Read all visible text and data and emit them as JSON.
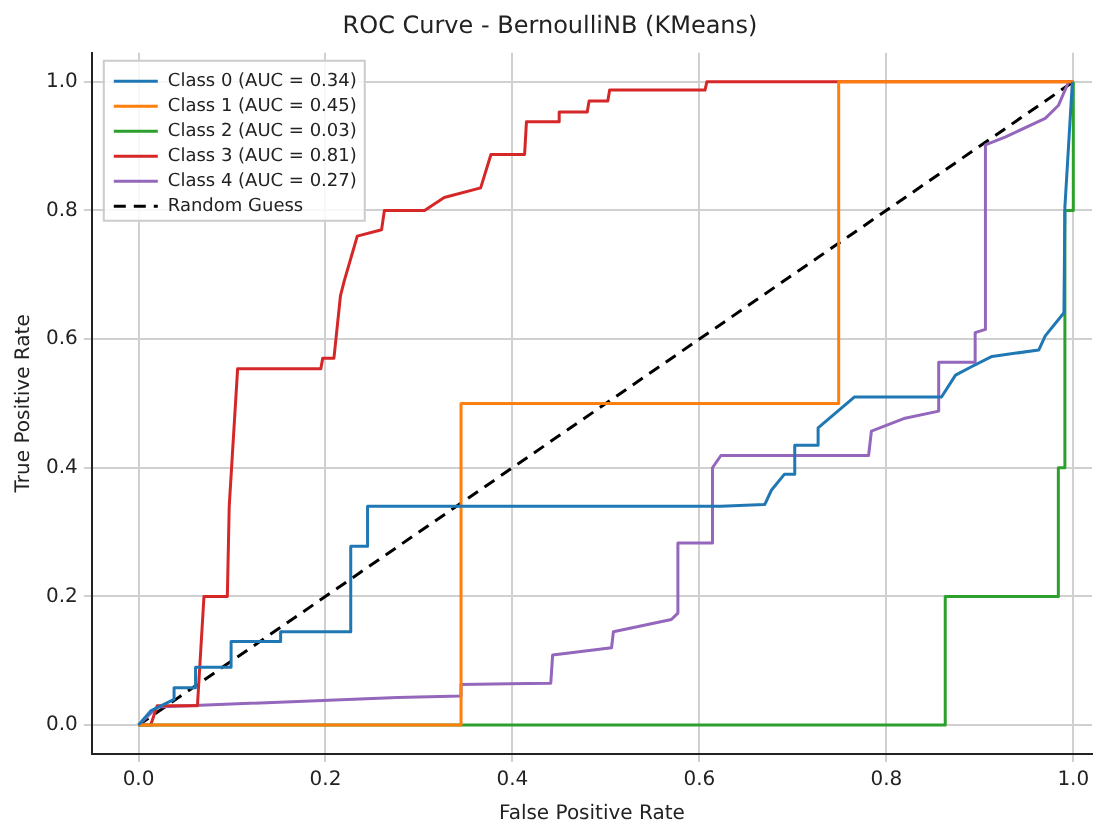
{
  "chart_data": {
    "type": "line",
    "title": "ROC Curve - BernoulliNB (KMeans)",
    "xlabel": "False Positive Rate",
    "ylabel": "True Positive Rate",
    "xlim": [
      -0.05,
      1.02
    ],
    "ylim": [
      -0.045,
      1.045
    ],
    "xticks": [
      {
        "value": 0,
        "label": "0.0"
      },
      {
        "value": 0.2,
        "label": "0.2"
      },
      {
        "value": 0.4,
        "label": "0.4"
      },
      {
        "value": 0.6,
        "label": "0.6"
      },
      {
        "value": 0.8,
        "label": "0.8"
      },
      {
        "value": 1,
        "label": "1.0"
      }
    ],
    "yticks": [
      {
        "value": 0,
        "label": "0.0"
      },
      {
        "value": 0.2,
        "label": "0.2"
      },
      {
        "value": 0.4,
        "label": "0.4"
      },
      {
        "value": 0.6,
        "label": "0.6"
      },
      {
        "value": 0.8,
        "label": "0.8"
      },
      {
        "value": 1,
        "label": "1.0"
      }
    ],
    "grid": true,
    "legend": "top left",
    "marker": "none",
    "line_style": "solid",
    "series": [
      {
        "name": "Class 0 (AUC = 0.34)",
        "color": "#1f77b4",
        "x": [
          0,
          0.013,
          0.038,
          0.038,
          0.061,
          0.061,
          0.099,
          0.099,
          0.152,
          0.152,
          0.227,
          0.227,
          0.245,
          0.245,
          0.623,
          0.67,
          0.677,
          0.691,
          0.702,
          0.702,
          0.727,
          0.727,
          0.766,
          0.859,
          0.874,
          0.891,
          0.913,
          0.963,
          0.97,
          0.99,
          0.991,
          0.999,
          1
        ],
        "values": [
          0,
          0.022,
          0.04,
          0.058,
          0.058,
          0.09,
          0.09,
          0.13,
          0.13,
          0.145,
          0.145,
          0.278,
          0.278,
          0.34,
          0.34,
          0.343,
          0.365,
          0.39,
          0.39,
          0.435,
          0.435,
          0.462,
          0.51,
          0.51,
          0.544,
          0.557,
          0.573,
          0.583,
          0.605,
          0.641,
          0.805,
          1,
          1
        ]
      },
      {
        "name": "Class 1 (AUC = 0.45)",
        "color": "#ff7f0e",
        "x": [
          0,
          0.345,
          0.345,
          0.749,
          0.749,
          1
        ],
        "values": [
          0,
          0,
          0.5,
          0.5,
          1,
          1
        ]
      },
      {
        "name": "Class 2 (AUC = 0.03)",
        "color": "#2ca02c",
        "x": [
          0,
          0.863,
          0.863,
          0.984,
          0.984,
          0.991,
          0.991,
          1,
          1
        ],
        "values": [
          0,
          0,
          0.2,
          0.2,
          0.4,
          0.4,
          0.8,
          0.8,
          1
        ]
      },
      {
        "name": "Class 3 (AUC = 0.81)",
        "color": "#d62728",
        "x": [
          0,
          0.013,
          0.02,
          0.063,
          0.07,
          0.095,
          0.097,
          0.106,
          0.195,
          0.197,
          0.209,
          0.216,
          0.22,
          0.234,
          0.26,
          0.263,
          0.306,
          0.327,
          0.366,
          0.377,
          0.413,
          0.415,
          0.449,
          0.45,
          0.48,
          0.482,
          0.502,
          0.504,
          0.606,
          0.608,
          1
        ],
        "values": [
          0,
          0,
          0.03,
          0.03,
          0.2,
          0.2,
          0.34,
          0.554,
          0.554,
          0.57,
          0.57,
          0.667,
          0.69,
          0.76,
          0.77,
          0.8,
          0.8,
          0.82,
          0.835,
          0.887,
          0.887,
          0.938,
          0.938,
          0.953,
          0.953,
          0.97,
          0.97,
          0.987,
          0.987,
          1,
          1
        ]
      },
      {
        "name": "Class 4 (AUC = 0.27)",
        "color": "#9467bd",
        "x": [
          0,
          0.02,
          0.277,
          0.345,
          0.345,
          0.441,
          0.443,
          0.506,
          0.508,
          0.57,
          0.577,
          0.577,
          0.614,
          0.614,
          0.623,
          0.781,
          0.784,
          0.82,
          0.856,
          0.856,
          0.895,
          0.895,
          0.906,
          0.906,
          0.927,
          0.97,
          0.984,
          0.995,
          1
        ],
        "values": [
          0,
          0.028,
          0.043,
          0.045,
          0.063,
          0.065,
          0.109,
          0.12,
          0.145,
          0.164,
          0.174,
          0.283,
          0.283,
          0.4,
          0.419,
          0.419,
          0.457,
          0.477,
          0.488,
          0.564,
          0.564,
          0.61,
          0.615,
          0.902,
          0.914,
          0.943,
          0.963,
          1,
          1
        ]
      },
      {
        "name": "Random Guess",
        "color": "#000000",
        "line_style": "dashed",
        "x": [
          0,
          1
        ],
        "values": [
          0,
          1
        ]
      }
    ]
  }
}
